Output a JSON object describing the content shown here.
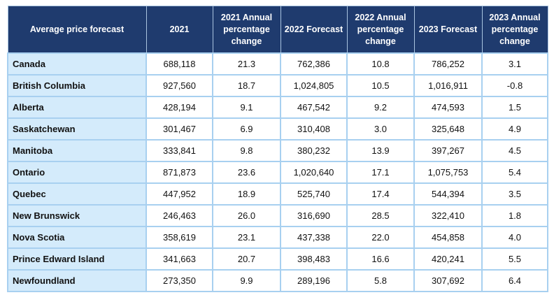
{
  "table": {
    "headers": [
      "Average price forecast",
      "2021",
      "2021 Annual percentage change",
      "2022 Forecast",
      "2022 Annual percentage change",
      "2023 Forecast",
      "2023 Annual percentage change"
    ],
    "rows": [
      [
        "Canada",
        "688,118",
        "21.3",
        "762,386",
        "10.8",
        "786,252",
        "3.1"
      ],
      [
        "British Columbia",
        "927,560",
        "18.7",
        "1,024,805",
        "10.5",
        "1,016,911",
        "-0.8"
      ],
      [
        "Alberta",
        "428,194",
        "9.1",
        "467,542",
        "9.2",
        "474,593",
        "1.5"
      ],
      [
        "Saskatchewan",
        "301,467",
        "6.9",
        "310,408",
        "3.0",
        "325,648",
        "4.9"
      ],
      [
        "Manitoba",
        "333,841",
        "9.8",
        "380,232",
        "13.9",
        "397,267",
        "4.5"
      ],
      [
        "Ontario",
        "871,873",
        "23.6",
        "1,020,640",
        "17.1",
        "1,075,753",
        "5.4"
      ],
      [
        "Quebec",
        "447,952",
        "18.9",
        "525,740",
        "17.4",
        "544,394",
        "3.5"
      ],
      [
        "New Brunswick",
        "246,463",
        "26.0",
        "316,690",
        "28.5",
        "322,410",
        "1.8"
      ],
      [
        "Nova Scotia",
        "358,619",
        "23.1",
        "437,338",
        "22.0",
        "454,858",
        "4.0"
      ],
      [
        "Prince Edward Island",
        "341,663",
        "20.7",
        "398,483",
        "16.6",
        "420,241",
        "5.5"
      ],
      [
        "Newfoundland",
        "273,350",
        "9.9",
        "289,196",
        "5.8",
        "307,692",
        "6.4"
      ]
    ]
  },
  "colors": {
    "header_background": "#1f3b6e",
    "header_text": "#ffffff",
    "region_cell_background": "#d4ebfb",
    "cell_border": "#a8d0f0"
  }
}
